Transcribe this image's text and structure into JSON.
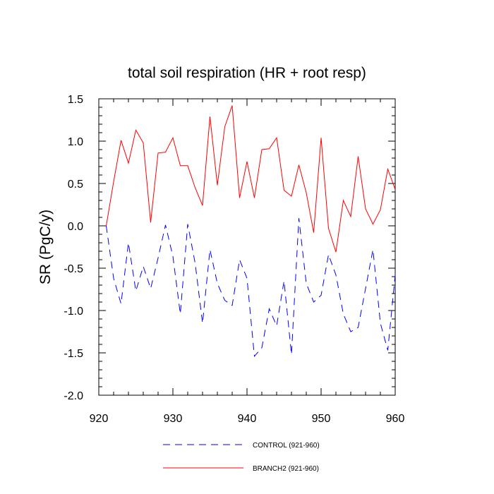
{
  "chart_data": {
    "type": "line",
    "title": "total soil respiration (HR + root resp)",
    "xlabel": "",
    "ylabel": "SR  (PgC/y)",
    "xlim": [
      920,
      960
    ],
    "ylim": [
      -2.0,
      1.5
    ],
    "x_ticks": [
      920,
      930,
      940,
      950,
      960
    ],
    "y_ticks": [
      -2.0,
      -1.5,
      -1.0,
      -0.5,
      0.0,
      0.5,
      1.0,
      1.5
    ],
    "x_tick_labels": [
      "920",
      "930",
      "940",
      "950",
      "960"
    ],
    "y_tick_labels": [
      "-2.0",
      "-1.5",
      "-1.0",
      "-0.5",
      "0.0",
      "0.5",
      "1.0",
      "1.5"
    ],
    "legend_position": "bottom",
    "grid": false,
    "x": [
      921,
      922,
      923,
      924,
      925,
      926,
      927,
      928,
      929,
      930,
      931,
      932,
      933,
      934,
      935,
      936,
      937,
      938,
      939,
      940,
      941,
      942,
      943,
      944,
      945,
      946,
      947,
      948,
      949,
      950,
      951,
      952,
      953,
      954,
      955,
      956,
      957,
      958,
      959,
      960
    ],
    "series": [
      {
        "name": "CONTROL (921-960)",
        "color": "#0000ff",
        "dash": "dashed",
        "values": [
          0.0,
          -0.62,
          -0.92,
          -0.2,
          -0.77,
          -0.48,
          -0.74,
          -0.38,
          0.01,
          -0.36,
          -1.04,
          0.02,
          -0.44,
          -1.15,
          -0.28,
          -0.68,
          -0.88,
          -0.94,
          -0.4,
          -0.62,
          -1.54,
          -1.44,
          -0.98,
          -1.18,
          -0.65,
          -1.52,
          0.09,
          -0.68,
          -0.9,
          -0.82,
          -0.34,
          -0.58,
          -1.04,
          -1.25,
          -1.2,
          -0.74,
          -0.28,
          -1.15,
          -1.47,
          -0.58
        ]
      },
      {
        "name": "BRANCH2 (921-960)",
        "color": "#ff0000",
        "dash": "solid",
        "values": [
          0.0,
          0.52,
          1.01,
          0.74,
          1.13,
          0.98,
          0.04,
          0.86,
          0.87,
          1.04,
          0.71,
          0.71,
          0.45,
          0.24,
          1.29,
          0.48,
          1.17,
          1.42,
          0.33,
          0.76,
          0.33,
          0.9,
          0.91,
          1.04,
          0.42,
          0.35,
          0.72,
          0.39,
          -0.08,
          1.04,
          -0.03,
          -0.31,
          0.3,
          0.11,
          0.82,
          0.2,
          0.02,
          0.19,
          0.67,
          0.43
        ]
      }
    ]
  }
}
